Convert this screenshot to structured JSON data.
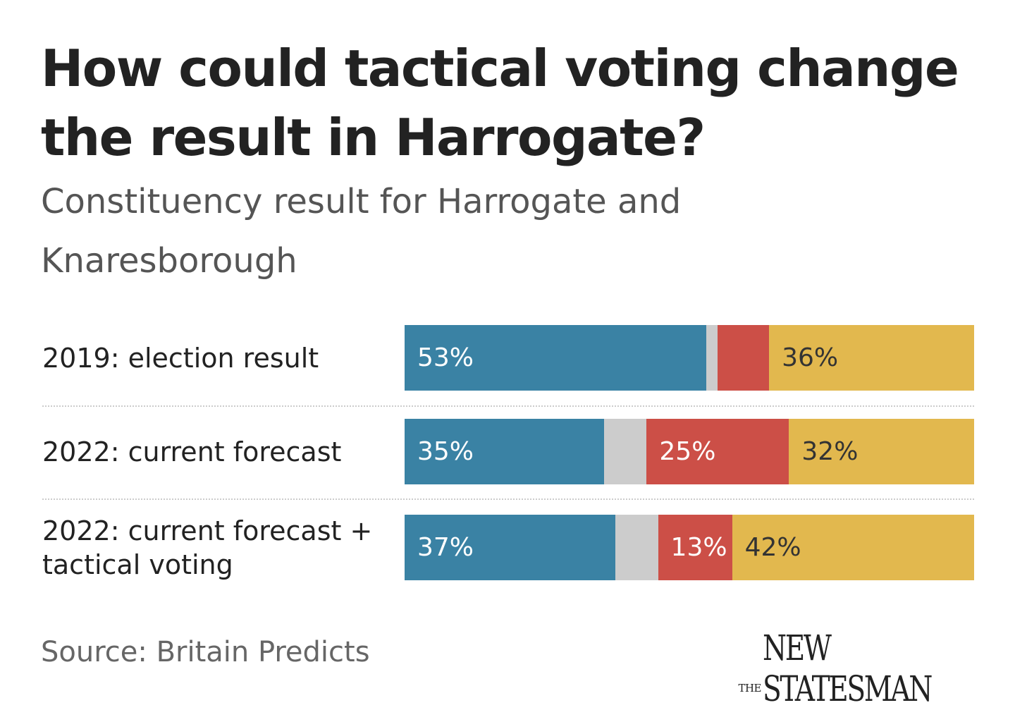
{
  "title": "How could tactical voting change the result in Harrogate?",
  "subtitle": "Constituency result for Harrogate and Knaresborough",
  "source": "Source: Britain Predicts",
  "publisher_logo": "THE NEW STATESMAN",
  "colors": {
    "conservative": "#3a82a4",
    "other": "#cccccc",
    "labour": "#cc4f47",
    "libdem": "#e2b84e",
    "label_dark": "#333333",
    "label_light": "#ffffff"
  },
  "chart_data": {
    "type": "bar",
    "orientation": "horizontal",
    "stacked": true,
    "xlim": [
      0,
      100
    ],
    "categories": [
      "2019: election result",
      "2022: current forecast",
      "2022: current forecast + tactical voting"
    ],
    "series": [
      {
        "values": [
          53,
          35,
          37
        ],
        "labels": [
          "53%",
          "35%",
          "37%"
        ]
      },
      {
        "values": [
          2,
          7.5,
          7.5
        ],
        "labels": [
          "",
          "",
          ""
        ]
      },
      {
        "values": [
          9,
          25,
          13
        ],
        "labels": [
          "",
          "25%",
          "13%"
        ]
      },
      {
        "values": [
          36,
          32.5,
          42.5
        ],
        "labels": [
          "36%",
          "32%",
          "42%"
        ]
      }
    ]
  }
}
